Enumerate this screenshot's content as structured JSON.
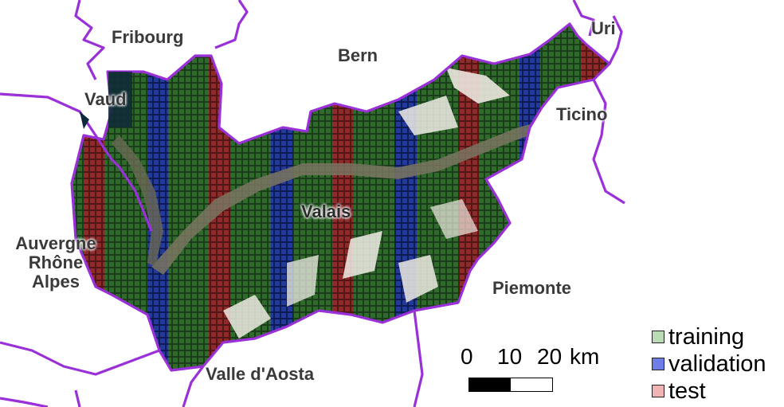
{
  "regions": {
    "fribourg": "Fribourg",
    "bern": "Bern",
    "uri": "Uri",
    "vaud": "Vaud",
    "ticino": "Ticino",
    "valais": "Valais",
    "auvergne": [
      "Auvergne",
      "Rhône",
      "Alpes"
    ],
    "piemonte": "Piemonte",
    "aosta": "Valle d'Aosta"
  },
  "legend": [
    {
      "label": "training",
      "color": "#b9dcb4"
    },
    {
      "label": "validation",
      "color": "#6f7ee6"
    },
    {
      "label": "test",
      "color": "#f0b4b4"
    }
  ],
  "scale": {
    "t0": "0",
    "t10": "10",
    "t20": "20",
    "unit": "km"
  },
  "colors": {
    "border": "#9a30d8",
    "training_tile": "#2f6b2a",
    "validation_tile": "#1e2f8a",
    "test_tile": "#8e2424",
    "snow": "#ece8e0",
    "rock": "#b9ad94",
    "valley": "#6d6a58"
  }
}
